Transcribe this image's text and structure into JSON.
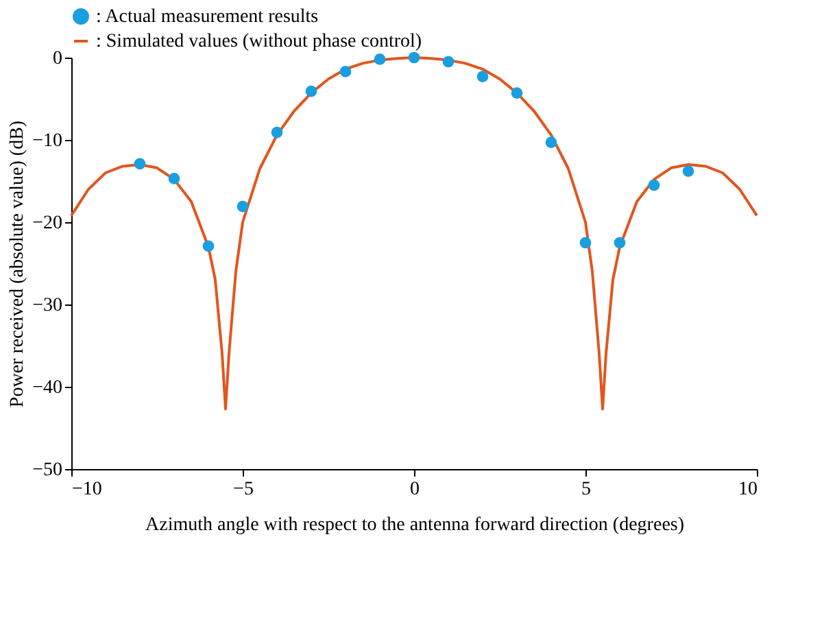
{
  "chart_data": {
    "type": "scatter",
    "xlabel": "Azimuth angle with respect to the antenna forward direction  (degrees)",
    "ylabel": "Power received (absolute value)  (dB)",
    "series": [
      {
        "name": ": Actual measurement results",
        "marker": "circle",
        "color": "#1b9ee0",
        "x": [
          -8,
          -7,
          -6,
          -5,
          -4,
          -3,
          -2,
          -1,
          0,
          1,
          2,
          3,
          4,
          5,
          6,
          7,
          8
        ],
        "values": [
          -12.9,
          -14.7,
          -22.9,
          -18.1,
          -9.1,
          -4.1,
          -1.7,
          -0.2,
          0,
          -0.5,
          -2.3,
          -4.3,
          -10.3,
          -22.5,
          -22.5,
          -15.5,
          -13.8
        ]
      },
      {
        "name": ": Simulated values (without phase control)",
        "type": "line",
        "marker": "none",
        "line_style": "solid",
        "color": "#e2561e",
        "x": [
          -10,
          -9.5,
          -9,
          -8.5,
          -8,
          -7.5,
          -7,
          -6.5,
          -6,
          -5.8,
          -5.6,
          -5.5,
          -5.4,
          -5.2,
          -5,
          -4.5,
          -4,
          -3.5,
          -3,
          -2.5,
          -2,
          -1.5,
          -1,
          -0.5,
          0,
          0.5,
          1,
          1.5,
          2,
          2.5,
          3,
          3.5,
          4,
          4.5,
          5,
          5.2,
          5.4,
          5.5,
          5.6,
          5.8,
          6,
          6.5,
          7,
          7.5,
          8,
          8.5,
          9,
          9.5,
          10
        ],
        "values": [
          -19.2,
          -16,
          -14,
          -13.2,
          -13,
          -13.4,
          -14.8,
          -17.5,
          -23,
          -27,
          -36,
          -42.7,
          -36,
          -26,
          -20,
          -13.5,
          -9.4,
          -6.5,
          -4.3,
          -2.6,
          -1.4,
          -0.7,
          -0.3,
          -0.1,
          0,
          -0.1,
          -0.3,
          -0.7,
          -1.4,
          -2.6,
          -4.3,
          -6.5,
          -9.4,
          -13.5,
          -20,
          -26,
          -36,
          -42.7,
          -36,
          -27,
          -23,
          -17.5,
          -14.8,
          -13.4,
          -13,
          -13.2,
          -14,
          -16,
          -19.2
        ]
      }
    ],
    "xlim": [
      -10,
      10
    ],
    "xticks": [
      -10,
      -5,
      0,
      5,
      10
    ],
    "ylim": [
      -50,
      0
    ],
    "yticks": [
      -50,
      -40,
      -30,
      -20,
      -10,
      0
    ],
    "grid": false,
    "legend": "top"
  }
}
